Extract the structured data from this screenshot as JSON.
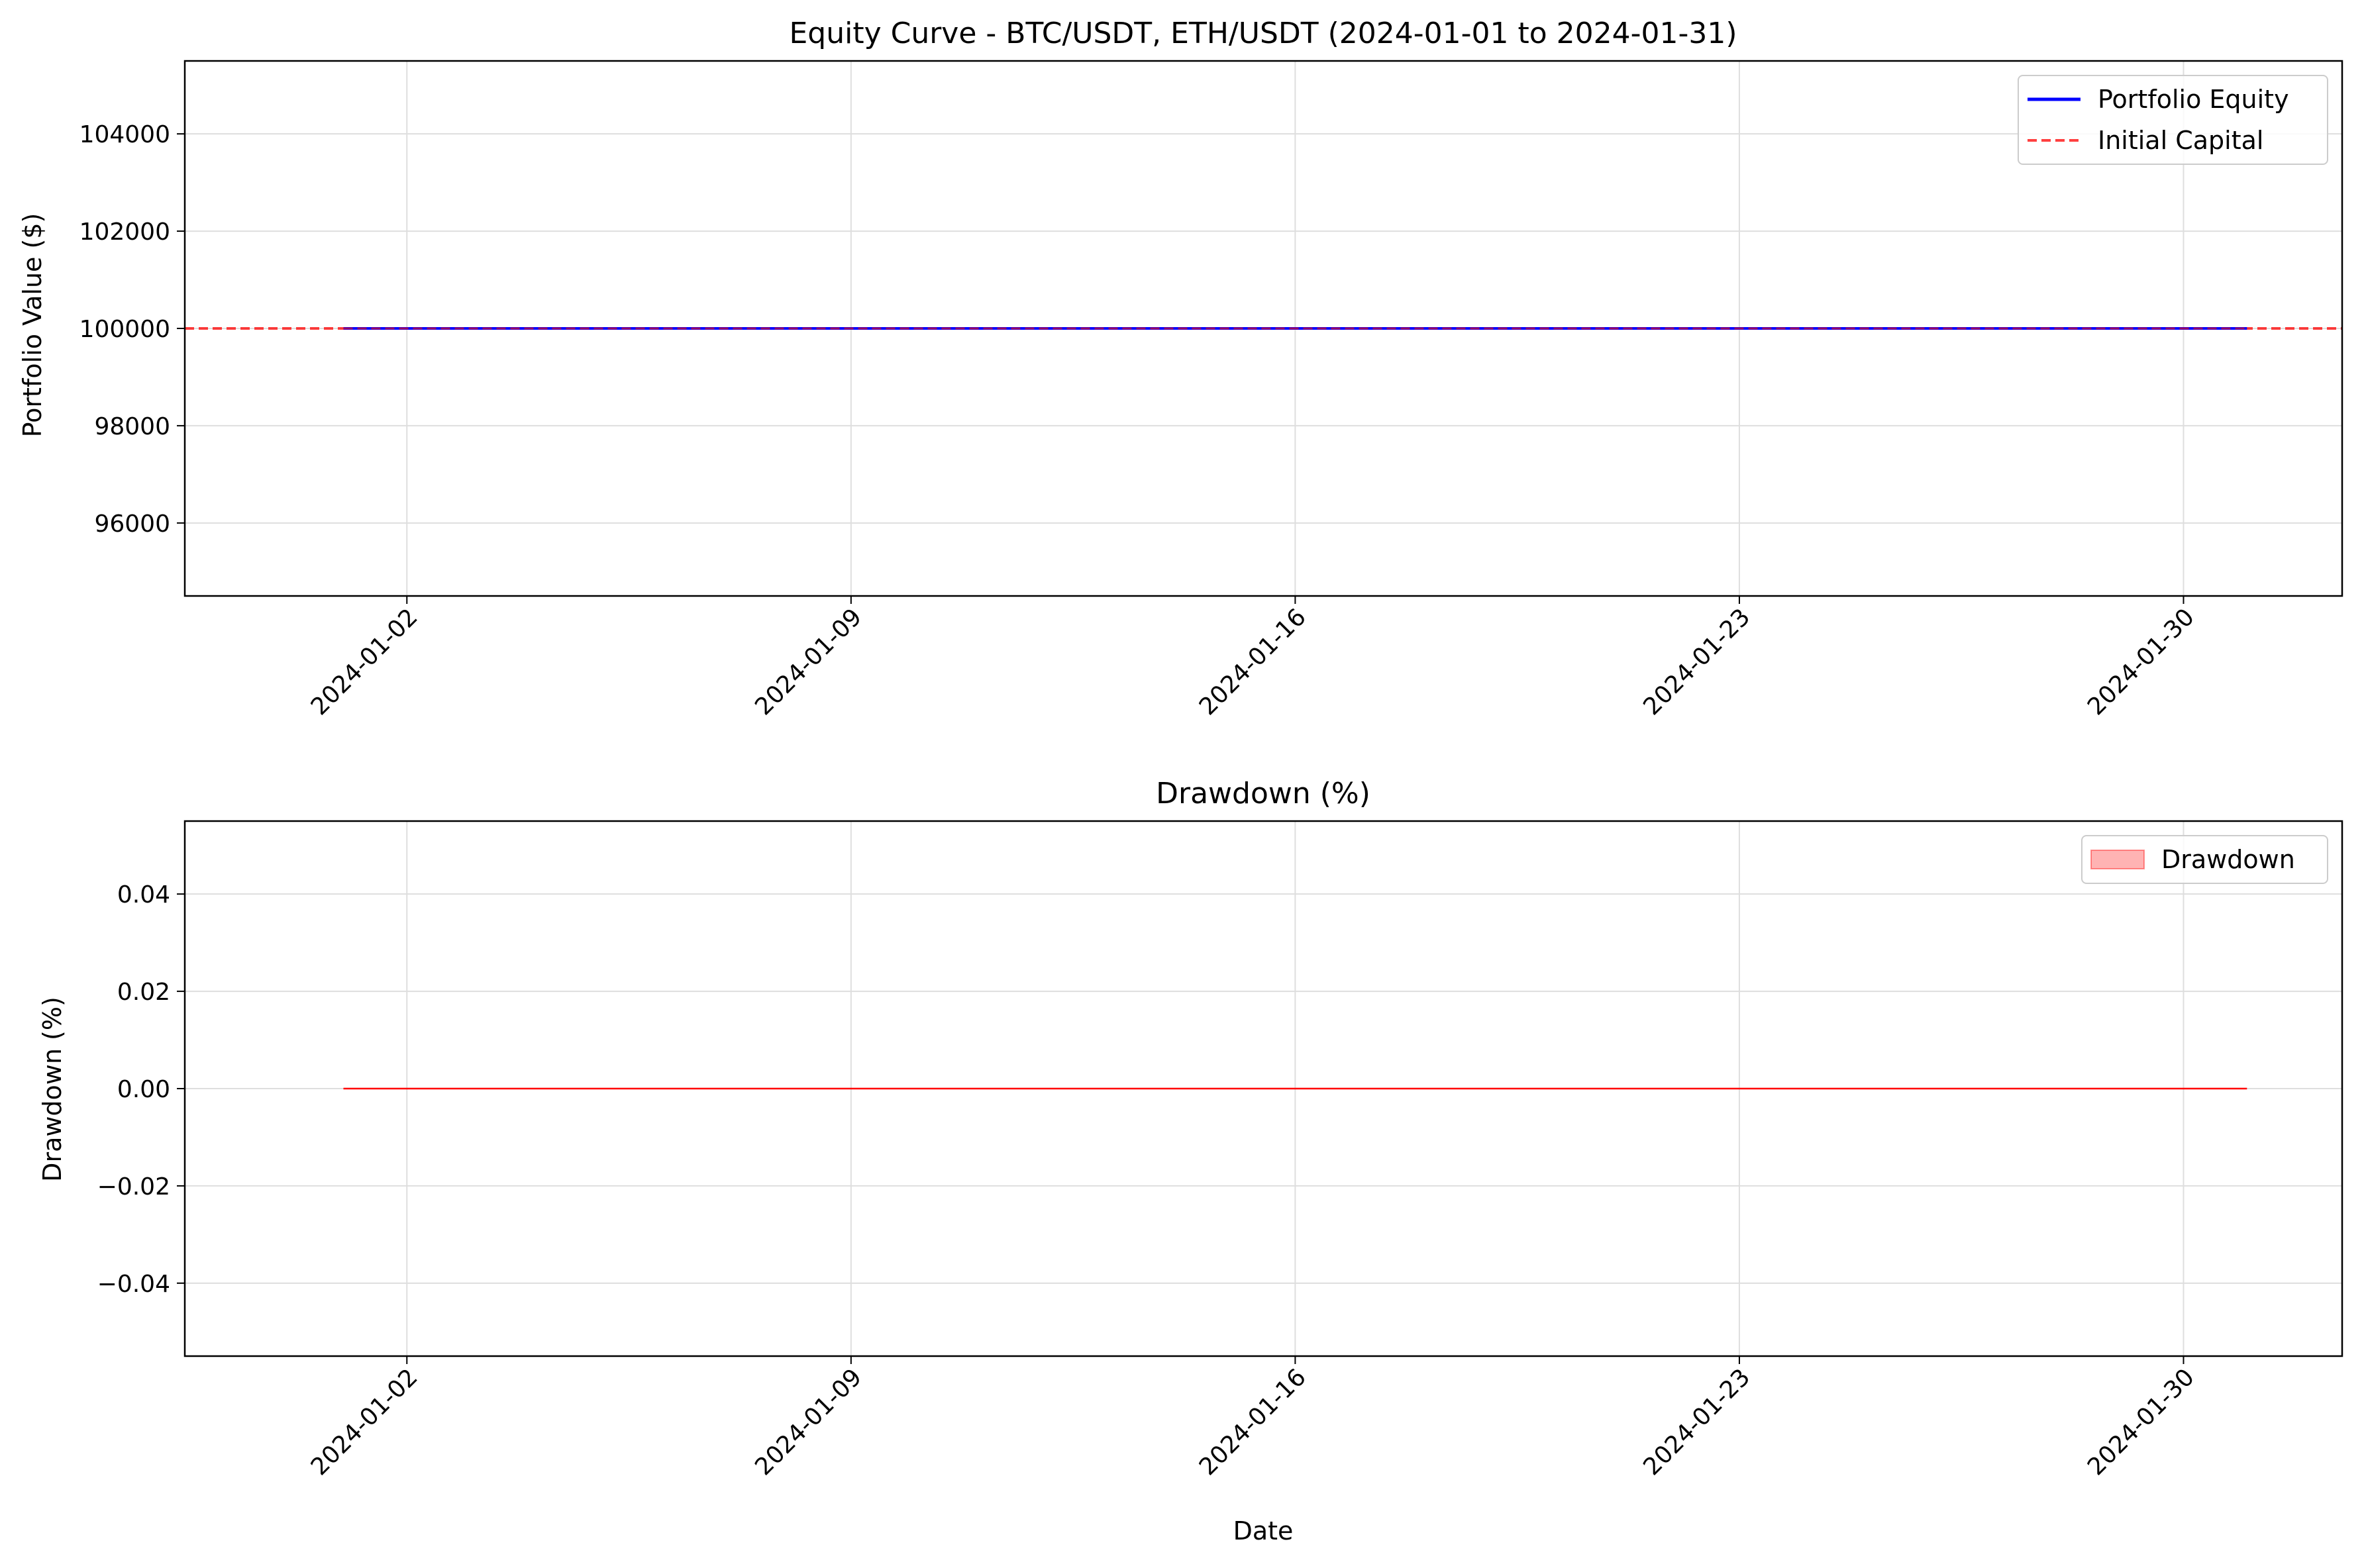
{
  "chart_data": [
    {
      "type": "line",
      "title": "Equity Curve - BTC/USDT, ETH/USDT (2024-01-01 to 2024-01-31)",
      "xlabel": "",
      "ylabel": "Portfolio Value ($)",
      "xlim": [
        "2023-12-29T12:00",
        "2024-02-01T12:00"
      ],
      "ylim": [
        94500,
        105500
      ],
      "xticks": [
        "2024-01-02",
        "2024-01-09",
        "2024-01-16",
        "2024-01-23",
        "2024-01-30"
      ],
      "yticks": [
        96000,
        98000,
        100000,
        102000,
        104000
      ],
      "ytick_labels": [
        "96000",
        "98000",
        "100000",
        "102000",
        "104000"
      ],
      "grid": true,
      "legend_position": "upper right",
      "series": [
        {
          "name": "Portfolio Equity",
          "color": "#0000ff",
          "style": "solid",
          "x": [
            "2024-01-01",
            "2024-01-31"
          ],
          "y": [
            100000,
            100000
          ]
        }
      ],
      "hlines": [
        {
          "name": "Initial Capital",
          "y": 100000,
          "color": "#ff0000",
          "style": "dashed"
        }
      ]
    },
    {
      "type": "area",
      "title": "Drawdown (%)",
      "xlabel": "Date",
      "ylabel": "Drawdown (%)",
      "xlim": [
        "2023-12-29T12:00",
        "2024-02-01T12:00"
      ],
      "ylim": [
        -0.055,
        0.055
      ],
      "xticks": [
        "2024-01-02",
        "2024-01-09",
        "2024-01-16",
        "2024-01-23",
        "2024-01-30"
      ],
      "yticks": [
        -0.04,
        -0.02,
        0.0,
        0.02,
        0.04
      ],
      "ytick_labels": [
        "−0.04",
        "−0.02",
        "0.00",
        "0.02",
        "0.04"
      ],
      "grid": true,
      "legend_position": "upper right",
      "series": [
        {
          "name": "Drawdown",
          "color": "#ff0000",
          "fill_color": "#ffb3b3",
          "x": [
            "2024-01-01",
            "2024-01-31"
          ],
          "y": [
            0,
            0
          ]
        }
      ]
    }
  ]
}
